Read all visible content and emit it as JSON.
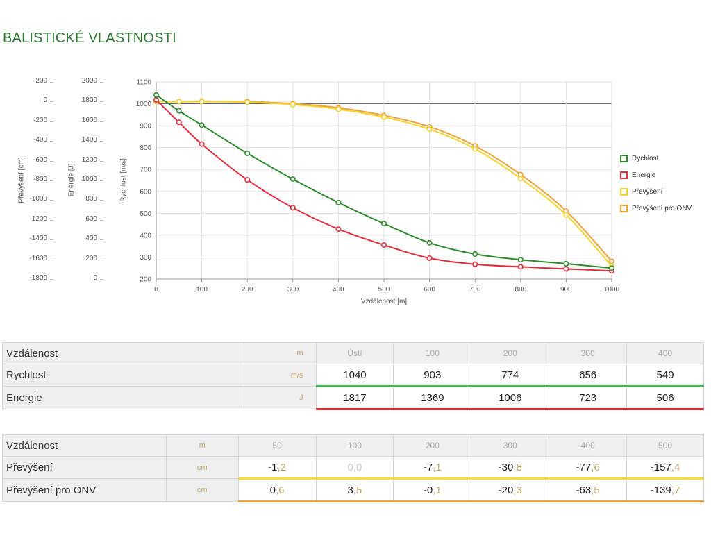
{
  "page": {
    "title": "BALISTICKÉ VLASTNOSTI"
  },
  "chart_data": {
    "type": "line",
    "xlabel": "Vzdálenost [m]",
    "xlim": [
      0,
      1000
    ],
    "x_ticks": [
      "0",
      "100",
      "200",
      "300",
      "400",
      "500",
      "600",
      "700",
      "800",
      "900",
      "1000"
    ],
    "axes": {
      "prevyseni": {
        "label": "Převýšení [cm]",
        "ticks": [
          "200",
          "0",
          "-200",
          "-400",
          "-600",
          "-800",
          "-1000",
          "-1200",
          "-1400",
          "-1600",
          "-1800"
        ],
        "ylim": [
          -1800,
          200
        ]
      },
      "energie": {
        "label": "Energie [J]",
        "ticks": [
          "2000",
          "1800",
          "1600",
          "1400",
          "1200",
          "1000",
          "800",
          "600",
          "400",
          "200",
          "0"
        ],
        "ylim": [
          0,
          2000
        ]
      },
      "rychlost": {
        "label": "Rychlost [m/s]",
        "ticks": [
          "1100",
          "1000",
          "900",
          "800",
          "700",
          "600",
          "500",
          "400",
          "300",
          "200"
        ],
        "ylim": [
          200,
          1100
        ]
      }
    },
    "series": [
      {
        "name": "Rychlost",
        "color": "#2e8b2e",
        "axis": "rychlost",
        "x": [
          0,
          50,
          100,
          200,
          300,
          400,
          500,
          600,
          700,
          800,
          900,
          1000
        ],
        "y": [
          1040,
          968,
          903,
          774,
          656,
          549,
          453,
          365,
          314,
          288,
          270,
          250
        ]
      },
      {
        "name": "Energie",
        "color": "#e02e3c",
        "axis": "energie",
        "x": [
          0,
          50,
          100,
          200,
          300,
          400,
          500,
          600,
          700,
          800,
          900,
          1000
        ],
        "y": [
          1817,
          1590,
          1369,
          1006,
          723,
          506,
          345,
          212,
          150,
          124,
          103,
          83
        ]
      },
      {
        "name": "Převýšení",
        "color": "#f5d332",
        "axis": "prevyseni",
        "x": [
          0,
          50,
          100,
          200,
          300,
          400,
          500,
          600,
          700,
          800,
          900,
          1000
        ],
        "y": [
          0,
          -1.2,
          0,
          -7.1,
          -30.8,
          -77.6,
          -157.4,
          -280,
          -480,
          -780,
          -1150,
          -1670
        ]
      },
      {
        "name": "Převýšení pro ONV",
        "color": "#eea23a",
        "axis": "prevyseni",
        "x": [
          0,
          50,
          100,
          200,
          300,
          400,
          500,
          600,
          700,
          800,
          900,
          1000
        ],
        "y": [
          0,
          0.6,
          3.5,
          -0.1,
          -20.3,
          -63.5,
          -139.7,
          -255,
          -450,
          -740,
          -1110,
          -1620
        ]
      }
    ],
    "legend_position": "right"
  },
  "table1": {
    "header": {
      "label": "Vzdálenost",
      "unit": "m",
      "cols": [
        "Ústí",
        "100",
        "200",
        "300",
        "400"
      ]
    },
    "rows": [
      {
        "label": "Rychlost",
        "unit": "m/s",
        "values": [
          "1040",
          "903",
          "774",
          "656",
          "549"
        ]
      },
      {
        "label": "Energie",
        "unit": "J",
        "values": [
          "1817",
          "1369",
          "1006",
          "723",
          "506"
        ]
      }
    ]
  },
  "table2": {
    "header": {
      "label": "Vzdálenost",
      "unit": "m",
      "cols": [
        "50",
        "100",
        "200",
        "300",
        "400",
        "500"
      ]
    },
    "rows": [
      {
        "label": "Převýšení",
        "unit": "cm",
        "values": [
          {
            "int": "-1",
            "dec": ",2"
          },
          {
            "int": "0",
            "dec": ",0",
            "muted": true
          },
          {
            "int": "-7",
            "dec": ",1"
          },
          {
            "int": "-30",
            "dec": ",8"
          },
          {
            "int": "-77",
            "dec": ",6"
          },
          {
            "int": "-157",
            "dec": ",4"
          }
        ]
      },
      {
        "label": "Převýšení pro ONV",
        "unit": "cm",
        "values": [
          {
            "int": "0",
            "dec": ",6"
          },
          {
            "int": "3",
            "dec": ",5"
          },
          {
            "int": "-0",
            "dec": ",1"
          },
          {
            "int": "-20",
            "dec": ",3"
          },
          {
            "int": "-63",
            "dec": ",5"
          },
          {
            "int": "-139",
            "dec": ",7"
          }
        ]
      }
    ]
  }
}
